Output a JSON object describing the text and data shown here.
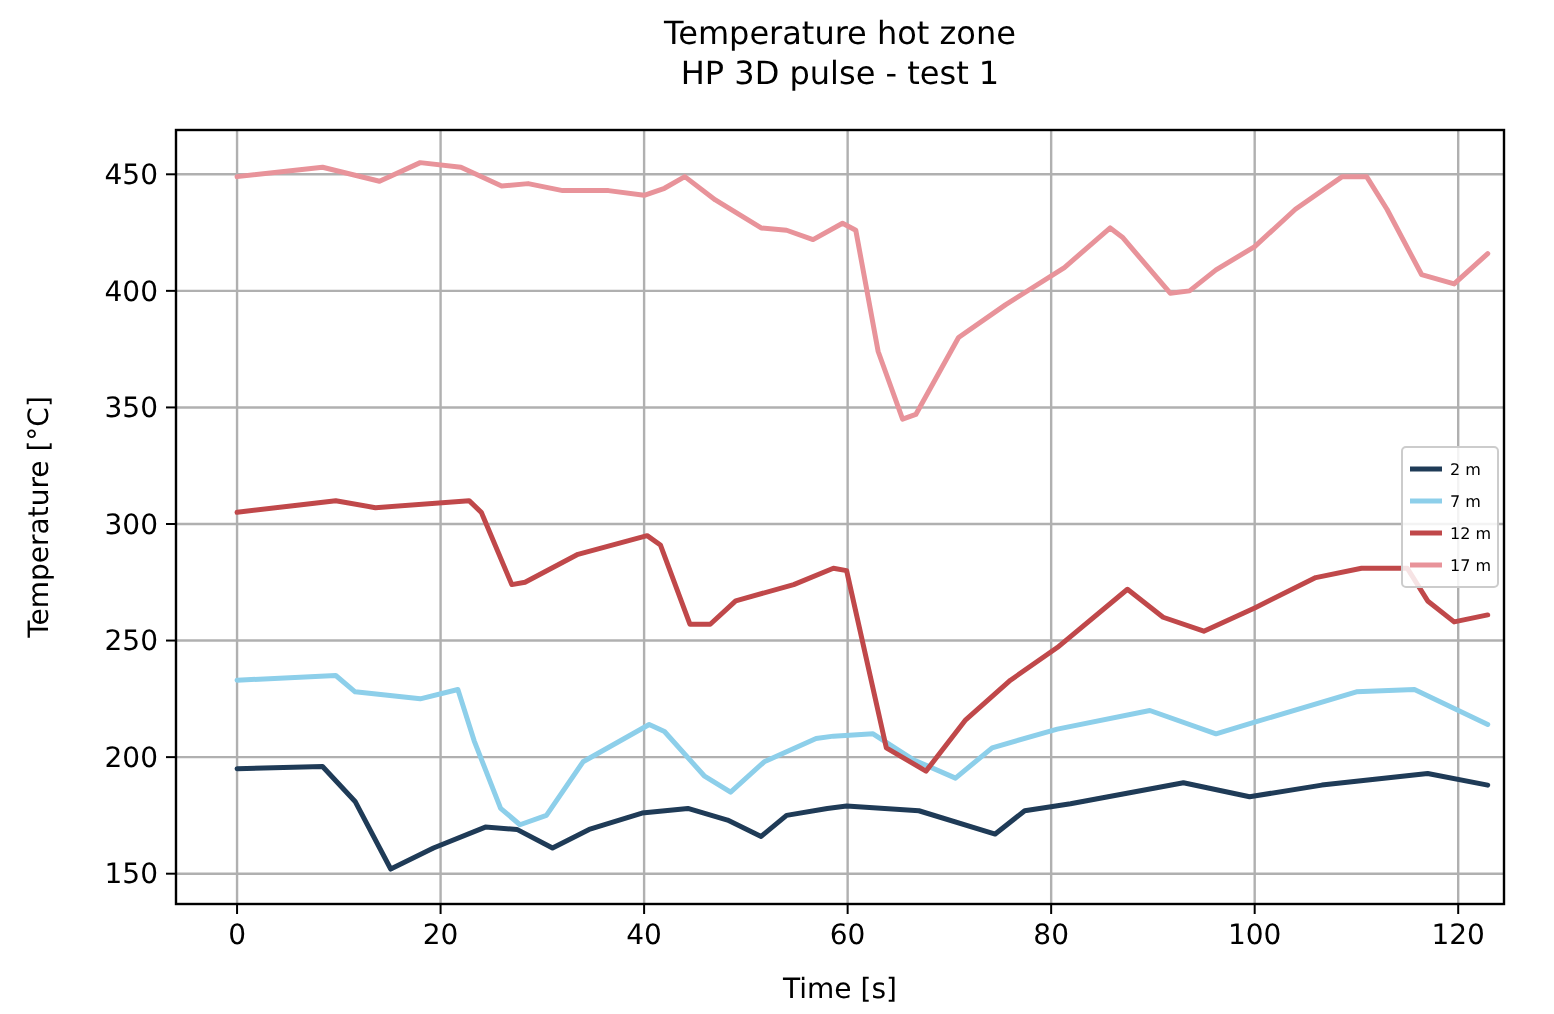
{
  "chart_data": {
    "type": "line",
    "title": "Temperature hot zone\nHP 3D pulse - test 1",
    "xlabel": "Time [s]",
    "ylabel": "Temperature [°C]",
    "xlim": [
      -6,
      124.5
    ],
    "ylim": [
      137,
      469
    ],
    "xticks": [
      0,
      20,
      40,
      60,
      80,
      100,
      120
    ],
    "yticks": [
      150,
      200,
      250,
      300,
      350,
      400,
      450
    ],
    "grid": true,
    "legend": "right",
    "line_style": "solid",
    "marker": "none",
    "series": [
      {
        "name": "2 m",
        "color": "#1f3b57",
        "x": [
          0,
          8.4,
          11.6,
          15.1,
          19.3,
          24.4,
          27.5,
          31,
          34.6,
          39.8,
          44.3,
          48.2,
          51.5,
          54,
          58,
          59.9,
          67,
          74.5,
          77.4,
          81.9,
          93,
          99.5,
          106.6,
          117,
          122.9
        ],
        "values": [
          195,
          196,
          181,
          152,
          161,
          170,
          169,
          161,
          169,
          176,
          178,
          173,
          166,
          175,
          178,
          179,
          177,
          167,
          177,
          180,
          189,
          183,
          188,
          193,
          188
        ]
      },
      {
        "name": "7 m",
        "color": "#8dcfea",
        "x": [
          0,
          9.7,
          11.6,
          18,
          21.7,
          23.3,
          25.9,
          27.8,
          30.4,
          34,
          40.5,
          42,
          45.9,
          48.5,
          51.8,
          56.9,
          58.6,
          62.5,
          66.4,
          70.6,
          74.2,
          80.6,
          89.7,
          96.2,
          100,
          110,
          115.7,
          122.9
        ],
        "values": [
          233,
          235,
          228,
          225,
          229,
          207,
          178,
          171,
          175,
          198,
          214,
          211,
          192,
          185,
          198,
          208,
          209,
          210,
          199,
          191,
          204,
          212,
          220,
          210,
          215,
          228,
          229,
          214
        ]
      },
      {
        "name": "12 m",
        "color": "#c0484a",
        "x": [
          0,
          9.7,
          13.6,
          22.8,
          24,
          27,
          28.3,
          33.5,
          40.3,
          41.6,
          44.5,
          46.5,
          49,
          54.7,
          58.6,
          59.9,
          63.8,
          67.7,
          71.6,
          76,
          80.6,
          87.5,
          91,
          95,
          100,
          106,
          110.5,
          115,
          117,
          119.6,
          122.9
        ],
        "values": [
          305,
          310,
          307,
          310,
          305,
          274,
          275,
          287,
          295,
          291,
          257,
          257,
          267,
          274,
          281,
          280,
          204,
          194,
          216,
          233,
          247,
          272,
          260,
          254,
          264,
          277,
          281,
          281,
          267,
          258,
          261
        ]
      },
      {
        "name": "17 m",
        "color": "#e8939a",
        "x": [
          0,
          8.4,
          14,
          18,
          22,
          26,
          28.6,
          32,
          36.5,
          40,
          42,
          44,
          47,
          51.5,
          54,
          56.6,
          59.5,
          60.8,
          63,
          65.4,
          66.7,
          70.9,
          75.5,
          81.3,
          85.8,
          87,
          91.7,
          93.6,
          96.2,
          100,
          104,
          108.6,
          111,
          113,
          116.4,
          119.6,
          122.9
        ],
        "values": [
          449,
          453,
          447,
          455,
          453,
          445,
          446,
          443,
          443,
          441,
          444,
          449,
          439,
          427,
          426,
          422,
          429,
          426,
          374,
          345,
          347,
          380,
          394,
          410,
          427,
          423,
          399,
          400,
          409,
          419,
          435,
          449,
          449,
          435,
          407,
          403,
          416
        ]
      }
    ]
  }
}
